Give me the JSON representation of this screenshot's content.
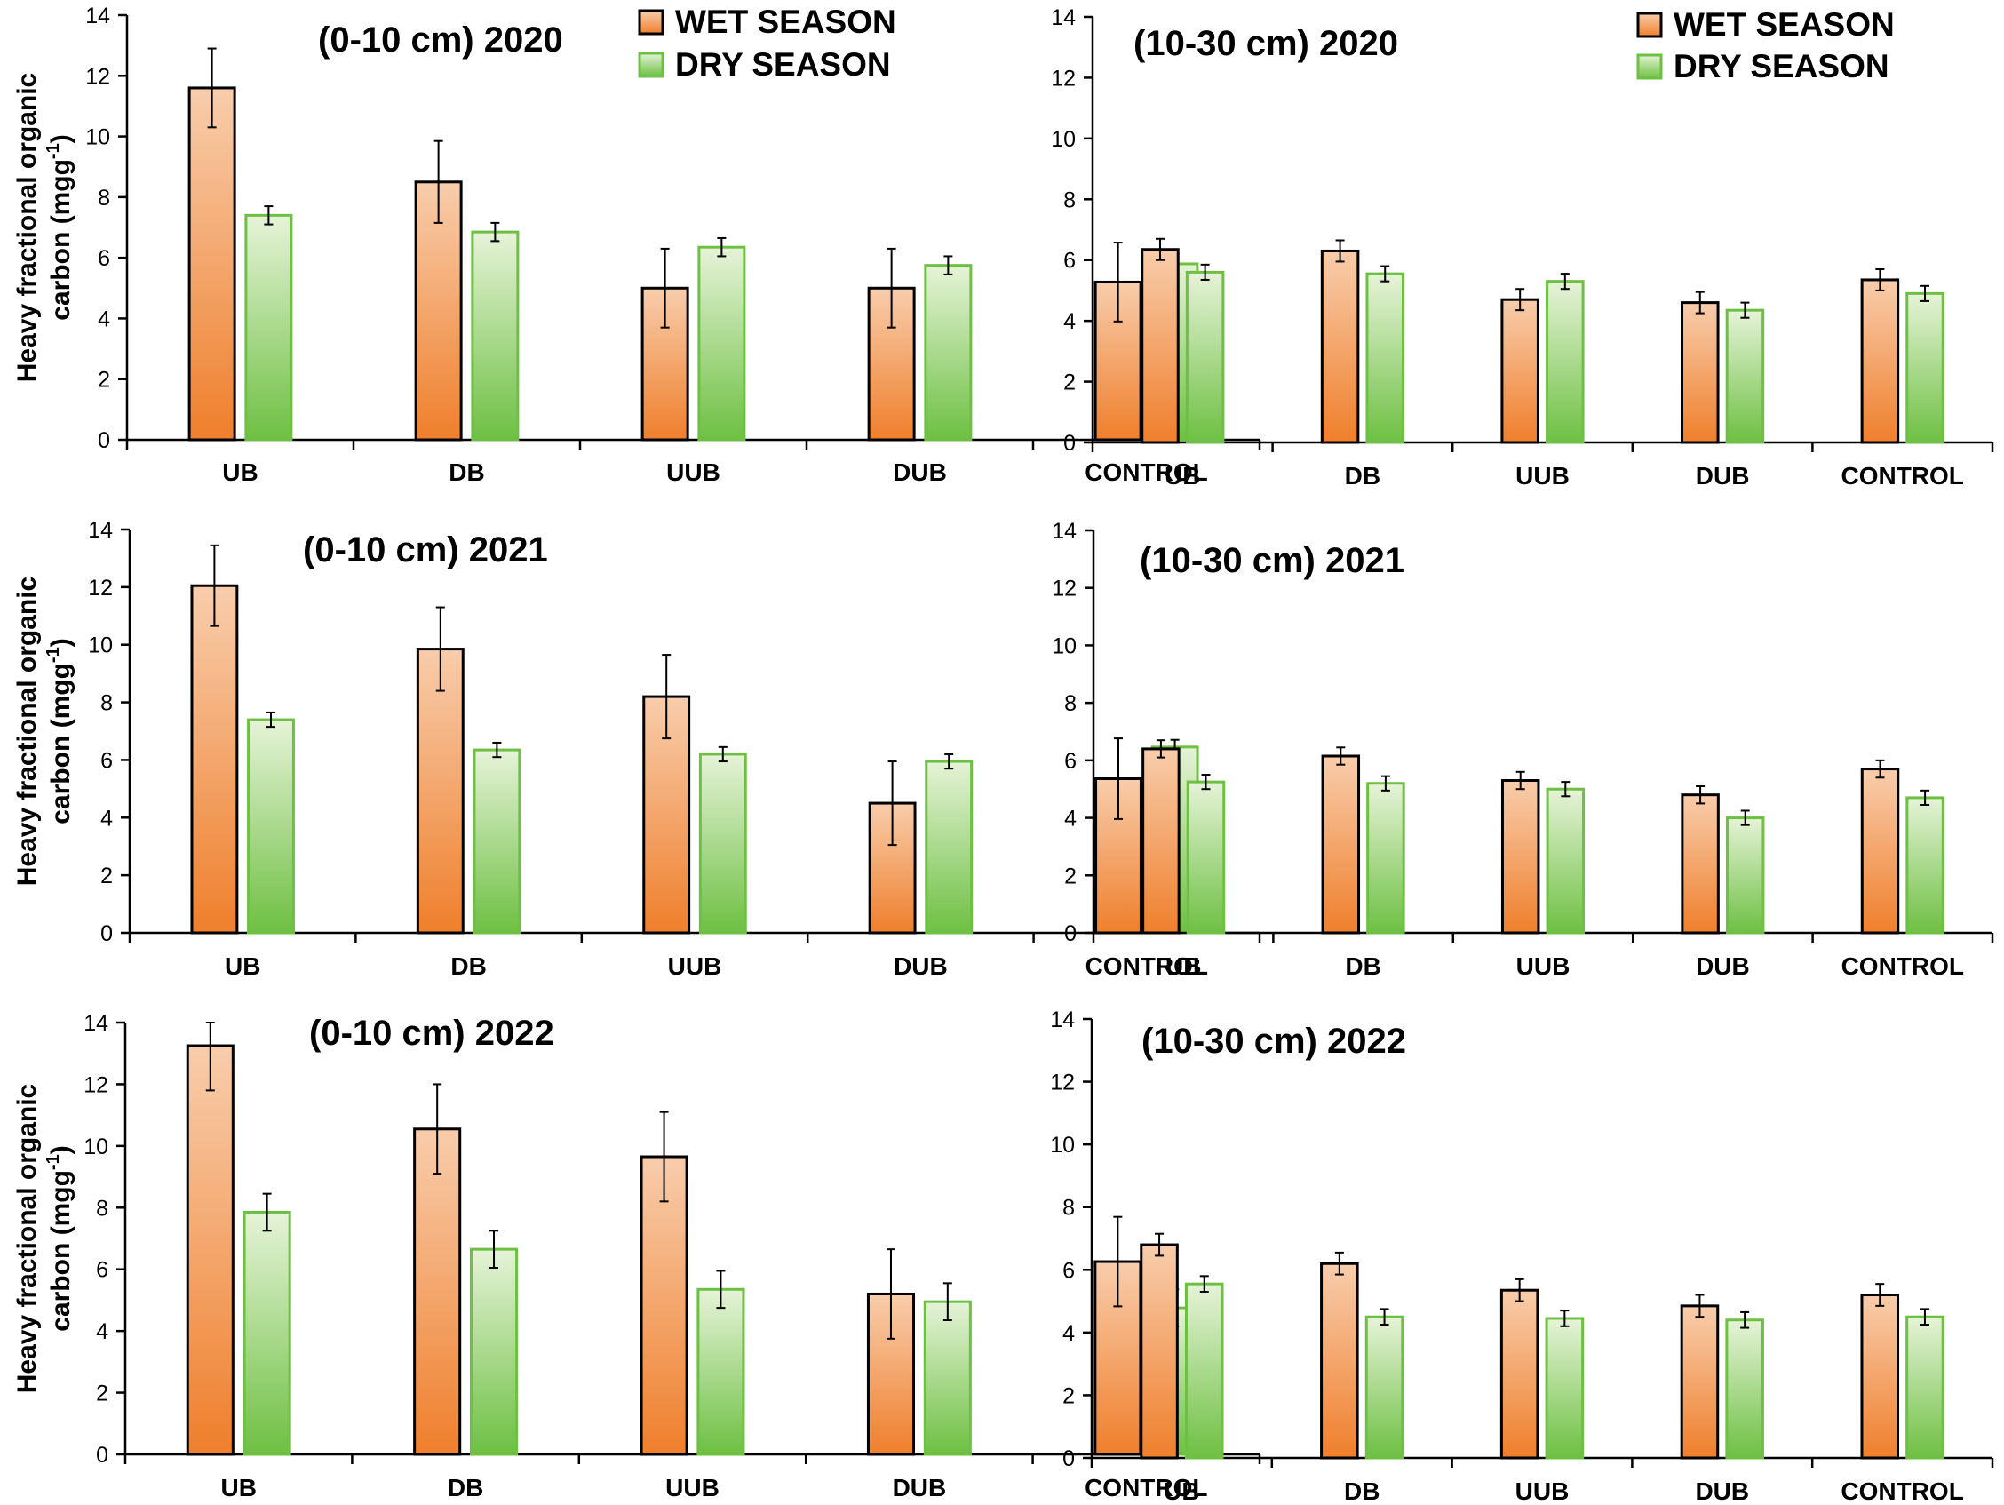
{
  "colors": {
    "wet_top": "#f8cdac",
    "wet_bottom": "#ef7f2c",
    "wet_stroke": "#000000",
    "dry_top": "#e6f3d8",
    "dry_bottom": "#6ec043",
    "dry_stroke": "#6ec043",
    "axis": "#000000"
  },
  "legend": {
    "wet": "WET SEASON",
    "dry": "DRY SEASON"
  },
  "chart_data": [
    {
      "id": "p0_10_2020",
      "type": "bar",
      "title": "(0-10 cm) 2020",
      "ylabel_line1": "Heavy fractional organic",
      "ylabel_line2": "carbon (mgg",
      "ylabel_sup": "-1",
      "ylabel_close": ")",
      "ylim": [
        0,
        14
      ],
      "yticks": [
        "0",
        "2",
        "4",
        "6",
        "8",
        "10",
        "12",
        "14"
      ],
      "categories": [
        "UB",
        "DB",
        "UUB",
        "DUB",
        "CONTROL"
      ],
      "series": [
        {
          "name": "WET SEASON",
          "values": [
            11.6,
            8.5,
            5.0,
            5.0,
            5.2
          ],
          "errors": [
            1.3,
            1.35,
            1.3,
            1.3,
            1.3
          ]
        },
        {
          "name": "DRY SEASON",
          "values": [
            7.4,
            6.85,
            6.35,
            5.75,
            5.8
          ],
          "errors": [
            0.3,
            0.3,
            0.3,
            0.3,
            0.3
          ]
        }
      ],
      "legend": "top-right"
    },
    {
      "id": "p10_30_2020",
      "type": "bar",
      "title": "(10-30 cm) 2020",
      "ylim": [
        0,
        14
      ],
      "yticks": [
        "0",
        "2",
        "4",
        "6",
        "8",
        "10",
        "12",
        "14"
      ],
      "categories": [
        "UB",
        "DB",
        "UUB",
        "DUB",
        "CONTROL"
      ],
      "series": [
        {
          "name": "WET SEASON",
          "values": [
            6.35,
            6.3,
            4.7,
            4.6,
            5.35
          ],
          "errors": [
            0.35,
            0.35,
            0.35,
            0.35,
            0.35
          ]
        },
        {
          "name": "DRY SEASON",
          "values": [
            5.6,
            5.55,
            5.3,
            4.35,
            4.9
          ],
          "errors": [
            0.25,
            0.25,
            0.25,
            0.25,
            0.25
          ]
        }
      ],
      "legend": "top-right"
    },
    {
      "id": "p0_10_2021",
      "type": "bar",
      "title": "(0-10 cm) 2021",
      "ylabel_line1": "Heavy fractional organic",
      "ylabel_line2": "carbon (mgg",
      "ylabel_sup": "-1",
      "ylabel_close": ")",
      "ylim": [
        0,
        14
      ],
      "yticks": [
        "0",
        "2",
        "4",
        "6",
        "8",
        "10",
        "12",
        "14"
      ],
      "categories": [
        "UB",
        "DB",
        "UUB",
        "DUB",
        "CONTROL"
      ],
      "series": [
        {
          "name": "WET SEASON",
          "values": [
            12.05,
            9.85,
            8.2,
            4.5,
            5.35
          ],
          "errors": [
            1.4,
            1.45,
            1.45,
            1.45,
            1.4
          ]
        },
        {
          "name": "DRY SEASON",
          "values": [
            7.4,
            6.35,
            6.2,
            5.95,
            6.45
          ],
          "errors": [
            0.25,
            0.25,
            0.25,
            0.25,
            0.25
          ]
        }
      ],
      "legend": "none"
    },
    {
      "id": "p10_30_2021",
      "type": "bar",
      "title": "(10-30 cm) 2021",
      "ylim": [
        0,
        14
      ],
      "yticks": [
        "0",
        "2",
        "4",
        "6",
        "8",
        "10",
        "12",
        "14"
      ],
      "categories": [
        "UB",
        "DB",
        "UUB",
        "DUB",
        "CONTROL"
      ],
      "series": [
        {
          "name": "WET SEASON",
          "values": [
            6.4,
            6.15,
            5.3,
            4.8,
            5.7
          ],
          "errors": [
            0.3,
            0.3,
            0.3,
            0.3,
            0.3
          ]
        },
        {
          "name": "DRY SEASON",
          "values": [
            5.25,
            5.2,
            5.0,
            4.0,
            4.7
          ],
          "errors": [
            0.25,
            0.25,
            0.25,
            0.25,
            0.25
          ]
        }
      ],
      "legend": "none"
    },
    {
      "id": "p0_10_2022",
      "type": "bar",
      "title": "(0-10 cm) 2022",
      "ylabel_line1": "Heavy fractional organic",
      "ylabel_line2": "carbon (mgg",
      "ylabel_sup": "-1",
      "ylabel_close": ")",
      "ylim": [
        0,
        14
      ],
      "yticks": [
        "0",
        "2",
        "4",
        "6",
        "8",
        "10",
        "12",
        "14"
      ],
      "categories": [
        "UB",
        "DB",
        "UUB",
        "DUB",
        "CONTROL"
      ],
      "series": [
        {
          "name": "WET SEASON",
          "values": [
            13.25,
            10.55,
            9.65,
            5.2,
            6.25
          ],
          "errors": [
            1.45,
            1.45,
            1.45,
            1.45,
            1.45
          ]
        },
        {
          "name": "DRY SEASON",
          "values": [
            7.85,
            6.65,
            5.35,
            4.95,
            4.75
          ],
          "errors": [
            0.6,
            0.6,
            0.6,
            0.6,
            0.6
          ]
        }
      ],
      "legend": "none"
    },
    {
      "id": "p10_30_2022",
      "type": "bar",
      "title": "(10-30 cm) 2022",
      "ylim": [
        0,
        14
      ],
      "yticks": [
        "0",
        "2",
        "4",
        "6",
        "8",
        "10",
        "12",
        "14"
      ],
      "categories": [
        "UB",
        "DB",
        "UUB",
        "DUB",
        "CONTROL"
      ],
      "series": [
        {
          "name": "WET SEASON",
          "values": [
            6.8,
            6.2,
            5.35,
            4.85,
            5.2
          ],
          "errors": [
            0.35,
            0.35,
            0.35,
            0.35,
            0.35
          ]
        },
        {
          "name": "DRY SEASON",
          "values": [
            5.55,
            4.5,
            4.45,
            4.4,
            4.5
          ],
          "errors": [
            0.25,
            0.25,
            0.25,
            0.25,
            0.25
          ]
        }
      ],
      "legend": "none"
    }
  ]
}
